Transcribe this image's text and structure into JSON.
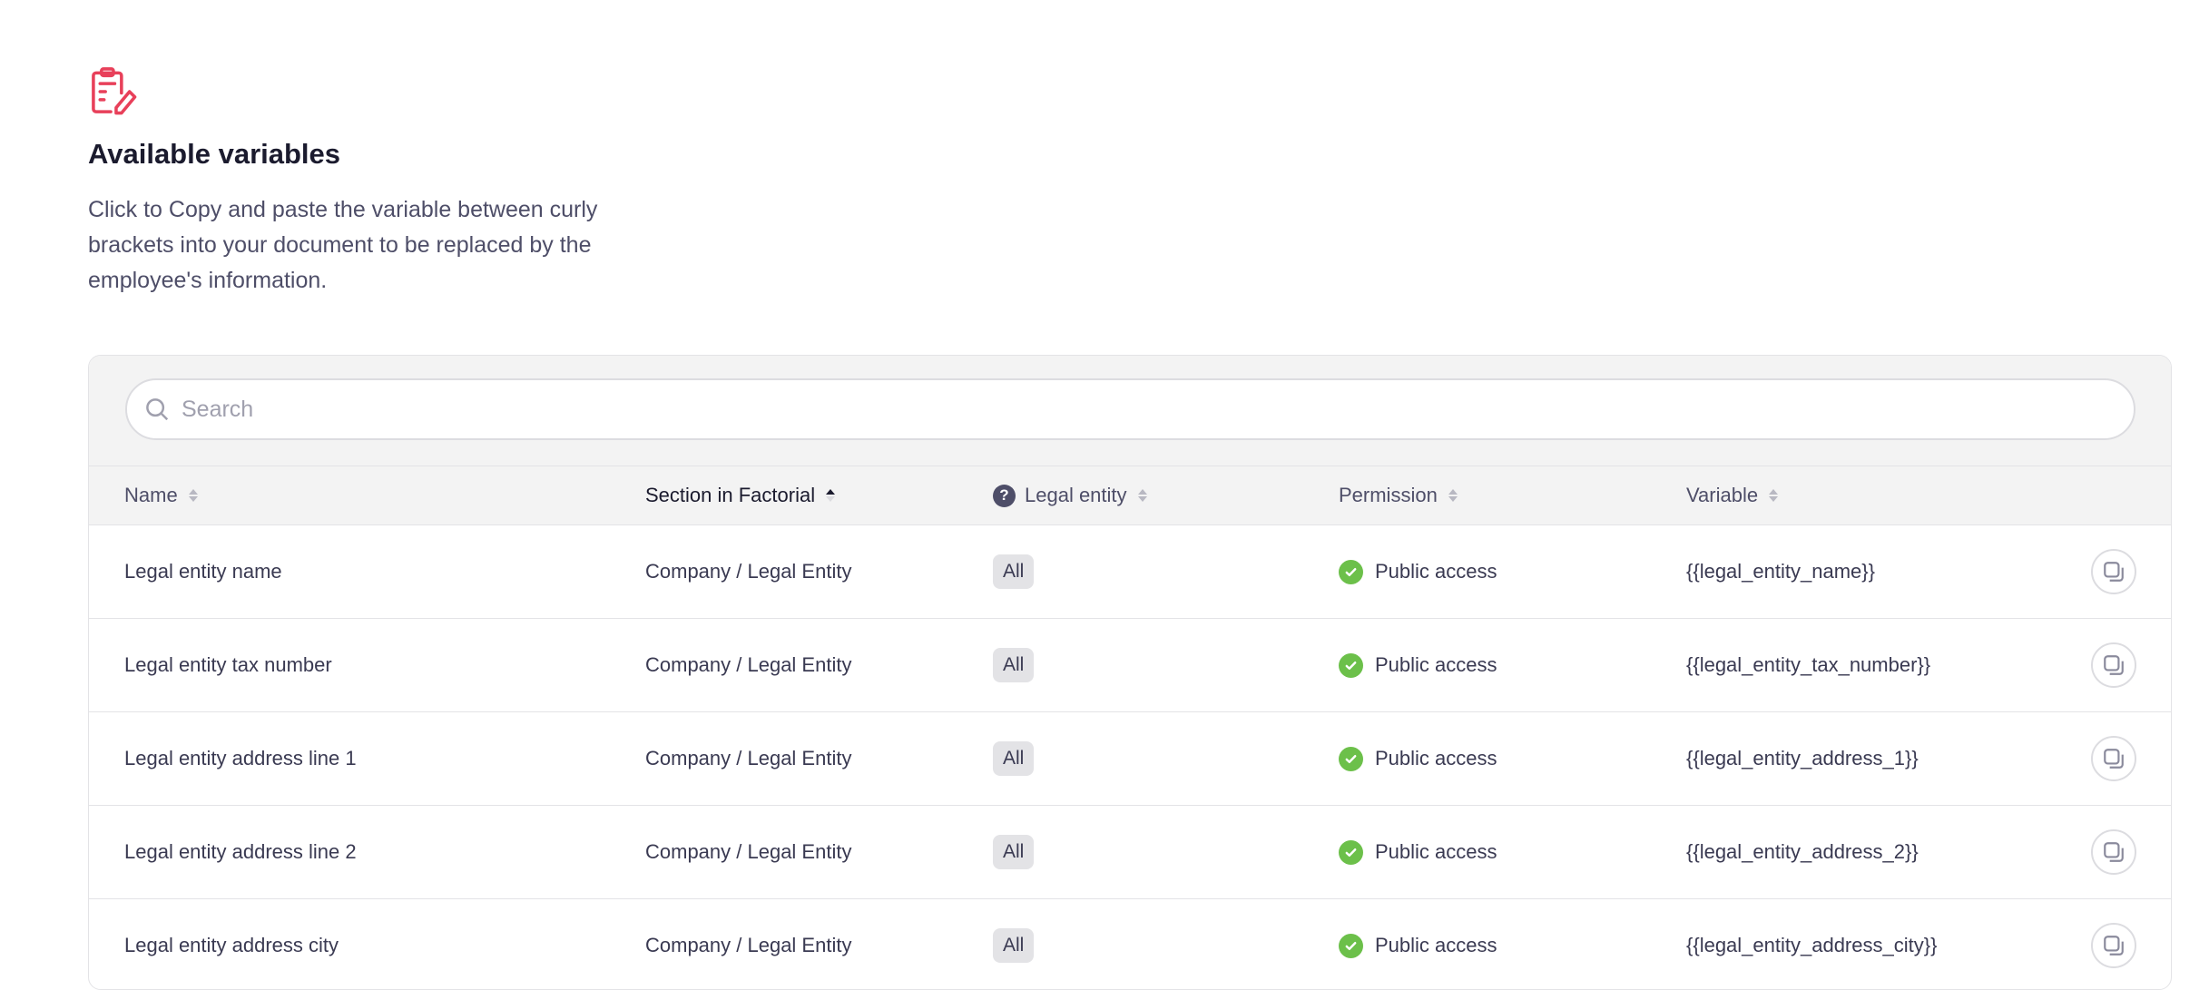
{
  "header": {
    "icon": "clipboard-edit-icon",
    "icon_color": "#e8405a",
    "title": "Available variables",
    "description": "Click to Copy and paste the variable between curly brackets into your document to be replaced by the employee's information."
  },
  "search": {
    "placeholder": "Search",
    "value": ""
  },
  "columns": [
    {
      "label": "Name",
      "sort": "none"
    },
    {
      "label": "Section in Factorial",
      "sort": "ascending"
    },
    {
      "label": "Legal entity",
      "sort": "none",
      "help_icon": "question-icon"
    },
    {
      "label": "Permission",
      "sort": "none"
    },
    {
      "label": "Variable",
      "sort": "none"
    }
  ],
  "rows": [
    {
      "name": "Legal entity name",
      "section": "Company / Legal Entity",
      "legal_entity": "All",
      "permission": "Public access",
      "variable": "{{legal_entity_name}}"
    },
    {
      "name": "Legal entity tax number",
      "section": "Company / Legal Entity",
      "legal_entity": "All",
      "permission": "Public access",
      "variable": "{{legal_entity_tax_number}}"
    },
    {
      "name": "Legal entity address line 1",
      "section": "Company / Legal Entity",
      "legal_entity": "All",
      "permission": "Public access",
      "variable": "{{legal_entity_address_1}}"
    },
    {
      "name": "Legal entity address line 2",
      "section": "Company / Legal Entity",
      "legal_entity": "All",
      "permission": "Public access",
      "variable": "{{legal_entity_address_2}}"
    },
    {
      "name": "Legal entity address city",
      "section": "Company / Legal Entity",
      "legal_entity": "All",
      "permission": "Public access",
      "variable": "{{legal_entity_address_city}}"
    }
  ],
  "colors": {
    "accent": "#e8405a",
    "success": "#6cc04a"
  }
}
